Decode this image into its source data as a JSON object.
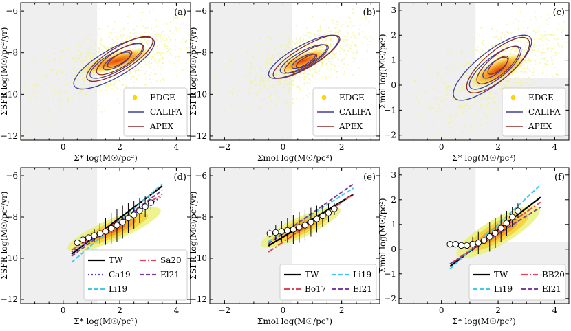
{
  "figure": {
    "colors": {
      "edge": "#ffd400",
      "califa": "#3b3fa0",
      "apex": "#8b2a2a",
      "shade": "#efefef",
      "tw": "#000000",
      "sa20": "#e0455a",
      "ca19": "#4a4ad0",
      "li19": "#40c8f0",
      "el21": "#7a3fa0",
      "bo17": "#e0455a",
      "bb20": "#e0455a"
    }
  },
  "chart_data": [
    {
      "id": "a",
      "panel_label": "(a)",
      "type": "scatter",
      "xlabel": "Σ* log(M☉/pc²)",
      "ylabel": "ΣSFR log(M☉/pc²/yr)",
      "xlim": [
        -1.5,
        4.5
      ],
      "ylim": [
        -12.2,
        -5.6
      ],
      "xticks": [
        0,
        2,
        4
      ],
      "xtick_labels": [
        "0",
        "2",
        "4"
      ],
      "yticks": [
        -12,
        -10,
        -8,
        -6
      ],
      "ytick_labels": [
        "−12",
        "−10",
        "−8",
        "−6"
      ],
      "shade_x_below": 1.2,
      "shade_y_below": null,
      "legend": [
        {
          "label": "EDGE",
          "kind": "dot",
          "color_key": "edge"
        },
        {
          "label": "CALIFA",
          "kind": "line",
          "color_key": "califa"
        },
        {
          "label": "APEX",
          "kind": "line",
          "color_key": "apex"
        }
      ],
      "density": {
        "cx": 1.9,
        "cy": -8.4,
        "sx": 1.05,
        "sy": 0.75,
        "rho": 0.55
      },
      "califa_contours": [
        {
          "cx": 1.8,
          "cy": -8.5,
          "rx": 1.8,
          "ry": 0.75,
          "angle_deg": 38
        },
        {
          "cx": 1.9,
          "cy": -8.4,
          "rx": 1.2,
          "ry": 0.5,
          "angle_deg": 38
        },
        {
          "cx": 1.9,
          "cy": -8.4,
          "rx": 0.6,
          "ry": 0.28,
          "angle_deg": 38
        }
      ],
      "apex_contours": [
        {
          "cx": 2.0,
          "cy": -8.3,
          "rx": 1.5,
          "ry": 0.62,
          "angle_deg": 40
        },
        {
          "cx": 2.0,
          "cy": -8.3,
          "rx": 1.05,
          "ry": 0.45,
          "angle_deg": 40
        },
        {
          "cx": 2.0,
          "cy": -8.3,
          "rx": 0.55,
          "ry": 0.25,
          "angle_deg": 40
        }
      ]
    },
    {
      "id": "b",
      "panel_label": "(b)",
      "type": "scatter",
      "xlabel": "Σmol log(M☉/pc²)",
      "ylabel": "ΣSFR log(M☉/pc²/yr)",
      "xlim": [
        -2.5,
        3.3
      ],
      "ylim": [
        -12.2,
        -5.6
      ],
      "xticks": [
        -2,
        0,
        2
      ],
      "xtick_labels": [
        "−2",
        "0",
        "2"
      ],
      "yticks": [
        -12,
        -10,
        -8,
        -6
      ],
      "ytick_labels": [
        "−12",
        "−10",
        "−8",
        "−6"
      ],
      "shade_x_below": 0.3,
      "shade_y_below": null,
      "legend": [
        {
          "label": "EDGE",
          "kind": "dot",
          "color_key": "edge"
        },
        {
          "label": "CALIFA",
          "kind": "line",
          "color_key": "califa"
        },
        {
          "label": "APEX",
          "kind": "line",
          "color_key": "apex"
        }
      ],
      "density": {
        "cx": 0.7,
        "cy": -8.4,
        "sx": 0.75,
        "sy": 0.7,
        "rho": 0.6
      },
      "califa_contours": [
        {
          "cx": 0.7,
          "cy": -8.2,
          "rx": 1.5,
          "ry": 0.6,
          "angle_deg": 38
        },
        {
          "cx": 0.7,
          "cy": -8.3,
          "rx": 1.0,
          "ry": 0.4,
          "angle_deg": 38
        },
        {
          "cx": 0.7,
          "cy": -8.4,
          "rx": 0.5,
          "ry": 0.22,
          "angle_deg": 38
        }
      ],
      "apex_contours": [
        {
          "cx": 0.8,
          "cy": -8.2,
          "rx": 1.45,
          "ry": 0.55,
          "angle_deg": 40
        },
        {
          "cx": 0.8,
          "cy": -8.3,
          "rx": 0.95,
          "ry": 0.38,
          "angle_deg": 40
        },
        {
          "cx": 0.8,
          "cy": -8.4,
          "rx": 0.45,
          "ry": 0.2,
          "angle_deg": 40
        }
      ]
    },
    {
      "id": "c",
      "panel_label": "(c)",
      "type": "scatter",
      "xlabel": "Σ* log(M☉/pc²)",
      "ylabel": "Σmol log(M☉/pc²)",
      "xlim": [
        -1.5,
        4.5
      ],
      "ylim": [
        -2.2,
        3.3
      ],
      "xticks": [
        0,
        2,
        4
      ],
      "xtick_labels": [
        "0",
        "2",
        "4"
      ],
      "yticks": [
        -2,
        -1,
        0,
        1,
        2,
        3
      ],
      "ytick_labels": [
        "−2",
        "−1",
        "0",
        "1",
        "2",
        "3"
      ],
      "shade_x_below": 1.2,
      "shade_y_below": 0.3,
      "legend": [
        {
          "label": "EDGE",
          "kind": "dot",
          "color_key": "edge"
        },
        {
          "label": "CALIFA",
          "kind": "line",
          "color_key": "califa"
        },
        {
          "label": "APEX",
          "kind": "line",
          "color_key": "apex"
        }
      ],
      "density": {
        "cx": 2.0,
        "cy": 0.6,
        "sx": 0.9,
        "sy": 0.8,
        "rho": 0.65
      },
      "califa_contours": [
        {
          "cx": 1.8,
          "cy": 0.7,
          "rx": 1.9,
          "ry": 0.7,
          "angle_deg": 42
        },
        {
          "cx": 1.9,
          "cy": 0.7,
          "rx": 1.25,
          "ry": 0.48,
          "angle_deg": 42
        },
        {
          "cx": 1.9,
          "cy": 0.7,
          "rx": 0.6,
          "ry": 0.25,
          "angle_deg": 42
        }
      ],
      "apex_contours": [
        {
          "cx": 2.0,
          "cy": 0.8,
          "rx": 1.55,
          "ry": 0.62,
          "angle_deg": 44
        },
        {
          "cx": 2.0,
          "cy": 0.8,
          "rx": 1.05,
          "ry": 0.42,
          "angle_deg": 44
        },
        {
          "cx": 2.0,
          "cy": 0.8,
          "rx": 0.5,
          "ry": 0.22,
          "angle_deg": 44
        }
      ]
    },
    {
      "id": "d",
      "panel_label": "(d)",
      "type": "line",
      "xlabel": "Σ* log(M☉/pc²)",
      "ylabel": "ΣSFR log(M☉/pc²/yr)",
      "xlim": [
        -1.5,
        4.5
      ],
      "ylim": [
        -12.2,
        -5.6
      ],
      "xticks": [
        0,
        2,
        4
      ],
      "xtick_labels": [
        "0",
        "2",
        "4"
      ],
      "yticks": [
        -12,
        -10,
        -8,
        -6
      ],
      "ytick_labels": [
        "−12",
        "−10",
        "−8",
        "−6"
      ],
      "shade_x_below": 1.2,
      "shade_y_below": null,
      "density": {
        "cx": 1.8,
        "cy": -8.6,
        "sx": 0.9,
        "sy": 0.75,
        "rho": 0.7
      },
      "fits": [
        {
          "name": "TW",
          "color_key": "tw",
          "dash": "",
          "x": [
            0.3,
            3.5
          ],
          "y": [
            -9.8,
            -6.5
          ]
        },
        {
          "name": "Sa20",
          "color_key": "sa20",
          "dash": "9,3,2,3",
          "x": [
            0.3,
            3.5
          ],
          "y": [
            -9.6,
            -6.9
          ]
        },
        {
          "name": "Ca19",
          "color_key": "ca19",
          "dash": "2,3",
          "x": [
            0.3,
            3.5
          ],
          "y": [
            -9.7,
            -7.0
          ]
        },
        {
          "name": "El21",
          "color_key": "el21",
          "dash": "6,3",
          "x": [
            0.3,
            3.5
          ],
          "y": [
            -9.9,
            -6.7
          ]
        },
        {
          "name": "Li19",
          "color_key": "li19",
          "dash": "6,3",
          "x": [
            0.3,
            3.5
          ],
          "y": [
            -10.2,
            -6.4
          ]
        }
      ],
      "binned": {
        "x": [
          0.5,
          0.7,
          0.9,
          1.1,
          1.3,
          1.5,
          1.7,
          1.9,
          2.1,
          2.3,
          2.5,
          2.7,
          2.9,
          3.1
        ],
        "y": [
          -9.25,
          -9.1,
          -9.0,
          -8.9,
          -8.8,
          -8.7,
          -8.55,
          -8.4,
          -8.25,
          -8.05,
          -7.9,
          -7.7,
          -7.5,
          -7.3
        ],
        "yerr": [
          0.1,
          0.1,
          0.15,
          0.3,
          0.5,
          0.65,
          0.75,
          0.8,
          0.8,
          0.75,
          0.7,
          0.6,
          0.5,
          0.35
        ]
      },
      "legend": [
        {
          "label": "TW",
          "color_key": "tw",
          "dash": ""
        },
        {
          "label": "Sa20",
          "color_key": "sa20",
          "dash": "9,3,2,3"
        },
        {
          "label": "Ca19",
          "color_key": "ca19",
          "dash": "2,3"
        },
        {
          "label": "El21",
          "color_key": "el21",
          "dash": "6,3"
        },
        {
          "label": "Li19",
          "color_key": "li19",
          "dash": "6,3"
        }
      ]
    },
    {
      "id": "e",
      "panel_label": "(e)",
      "type": "line",
      "xlabel": "Σmol log(M☉/pc²)",
      "ylabel": "ΣSFR log(M☉/pc²/yr)",
      "xlim": [
        -2.5,
        3.3
      ],
      "ylim": [
        -12.2,
        -5.6
      ],
      "xticks": [
        -2,
        0,
        2
      ],
      "xtick_labels": [
        "−2",
        "0",
        "2"
      ],
      "yticks": [
        -12,
        -10,
        -8,
        -6
      ],
      "ytick_labels": [
        "−12",
        "−10",
        "−8",
        "−6"
      ],
      "shade_x_below": 0.3,
      "shade_y_below": null,
      "density": {
        "cx": 0.6,
        "cy": -8.5,
        "sx": 0.75,
        "sy": 0.7,
        "rho": 0.7
      },
      "fits": [
        {
          "name": "TW",
          "color_key": "tw",
          "dash": "",
          "x": [
            -0.5,
            2.4
          ],
          "y": [
            -9.4,
            -6.9
          ]
        },
        {
          "name": "Bo17",
          "color_key": "bo17",
          "dash": "9,3,2,3",
          "x": [
            -0.5,
            2.4
          ],
          "y": [
            -9.7,
            -6.9
          ]
        },
        {
          "name": "Li19",
          "color_key": "li19",
          "dash": "6,3",
          "x": [
            -0.5,
            2.4
          ],
          "y": [
            -9.2,
            -6.6
          ]
        },
        {
          "name": "El21",
          "color_key": "el21",
          "dash": "6,3",
          "x": [
            -0.5,
            2.4
          ],
          "y": [
            -9.3,
            -6.4
          ]
        }
      ],
      "binned": {
        "x": [
          -0.45,
          -0.25,
          -0.05,
          0.15,
          0.35,
          0.55,
          0.75,
          0.95,
          1.15,
          1.35,
          1.55,
          1.75
        ],
        "y": [
          -8.8,
          -8.75,
          -8.7,
          -8.65,
          -8.6,
          -8.5,
          -8.4,
          -8.25,
          -8.1,
          -7.95,
          -7.8,
          -7.6
        ],
        "yerr": [
          0.2,
          0.35,
          0.5,
          0.6,
          0.7,
          0.75,
          0.75,
          0.7,
          0.65,
          0.55,
          0.45,
          0.3
        ]
      },
      "legend": [
        {
          "label": "TW",
          "color_key": "tw",
          "dash": ""
        },
        {
          "label": "Li19",
          "color_key": "li19",
          "dash": "6,3"
        },
        {
          "label": "Bo17",
          "color_key": "bo17",
          "dash": "9,3,2,3"
        },
        {
          "label": "El21",
          "color_key": "el21",
          "dash": "6,3"
        }
      ]
    },
    {
      "id": "f",
      "panel_label": "(f)",
      "type": "line",
      "xlabel": "Σ* log(M☉/pc²)",
      "ylabel": "Σmol log(M☉/pc²)",
      "xlim": [
        -1.5,
        4.5
      ],
      "ylim": [
        -2.2,
        3.3
      ],
      "xticks": [
        0,
        2,
        4
      ],
      "xtick_labels": [
        "0",
        "2",
        "4"
      ],
      "yticks": [
        -2,
        -1,
        0,
        1,
        2,
        3
      ],
      "ytick_labels": [
        "−2",
        "−1",
        "0",
        "1",
        "2",
        "3"
      ],
      "shade_x_below": 1.2,
      "shade_y_below": 0.3,
      "density": {
        "cx": 2.0,
        "cy": 0.7,
        "sx": 0.85,
        "sy": 0.75,
        "rho": 0.75
      },
      "fits": [
        {
          "name": "TW",
          "color_key": "tw",
          "dash": "",
          "x": [
            0.3,
            3.5
          ],
          "y": [
            -0.7,
            2.1
          ]
        },
        {
          "name": "BB20",
          "color_key": "bb20",
          "dash": "9,3,2,3",
          "x": [
            0.3,
            3.5
          ],
          "y": [
            -0.6,
            1.9
          ]
        },
        {
          "name": "Li19",
          "color_key": "li19",
          "dash": "6,3",
          "x": [
            0.3,
            3.5
          ],
          "y": [
            -0.8,
            2.6
          ]
        },
        {
          "name": "El21",
          "color_key": "el21",
          "dash": "6,3",
          "x": [
            0.3,
            3.5
          ],
          "y": [
            -0.6,
            1.7
          ]
        }
      ],
      "binned": {
        "x": [
          0.3,
          0.5,
          0.7,
          0.9,
          1.1,
          1.3,
          1.5,
          1.7,
          1.9,
          2.1,
          2.3,
          2.5,
          2.7
        ],
        "y": [
          0.2,
          0.2,
          0.15,
          0.15,
          0.2,
          0.25,
          0.35,
          0.5,
          0.65,
          0.85,
          1.05,
          1.3,
          1.55
        ],
        "yerr": [
          0.05,
          0.08,
          0.1,
          0.15,
          0.3,
          0.45,
          0.55,
          0.6,
          0.6,
          0.55,
          0.5,
          0.4,
          0.3
        ]
      },
      "legend": [
        {
          "label": "TW",
          "color_key": "tw",
          "dash": ""
        },
        {
          "label": "BB20",
          "color_key": "bb20",
          "dash": "9,3,2,3"
        },
        {
          "label": "Li19",
          "color_key": "li19",
          "dash": "6,3"
        },
        {
          "label": "El21",
          "color_key": "el21",
          "dash": "6,3"
        }
      ]
    }
  ]
}
